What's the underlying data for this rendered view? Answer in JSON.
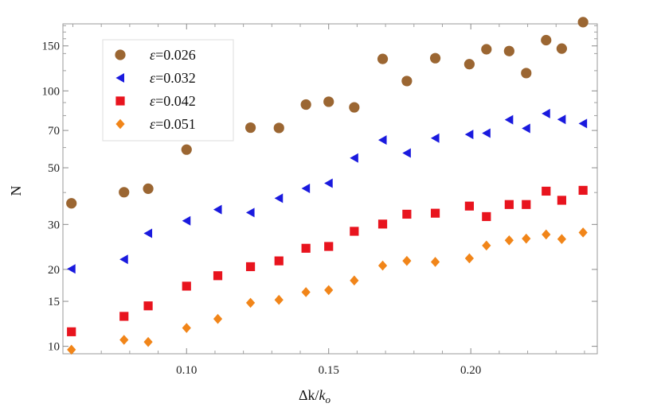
{
  "chart_data": {
    "type": "scatter",
    "title": "",
    "xlabel": "Δk/k_o",
    "ylabel": "N",
    "xlim": [
      0.0565,
      0.2445
    ],
    "ylim": [
      9.35,
      183
    ],
    "y_scale": "log",
    "x_ticks": [
      0.1,
      0.15,
      0.2
    ],
    "x_tick_labels": [
      "0.10",
      "0.15",
      "0.20"
    ],
    "y_ticks": [
      10,
      15,
      20,
      30,
      50,
      70,
      100,
      150
    ],
    "y_tick_labels": [
      "10",
      "15",
      "20",
      "30",
      "50",
      "70",
      "100",
      "150"
    ],
    "grid": false,
    "legend_position": "top-left",
    "x": [
      0.0595,
      0.078,
      0.0865,
      0.1,
      0.111,
      0.1225,
      0.1325,
      0.142,
      0.15,
      0.159,
      0.169,
      0.1775,
      0.1875,
      0.1995,
      0.2055,
      0.2135,
      0.2195,
      0.2265,
      0.232,
      0.2395
    ],
    "series": [
      {
        "name": "ε=0.026",
        "marker": "circle",
        "color": "#9B6632",
        "values": [
          36.3,
          40.1,
          41.4,
          58.9,
          73.7,
          71.8,
          71.6,
          88.4,
          90.7,
          86.2,
          133.4,
          109.3,
          134.3,
          127.2,
          145.5,
          143.2,
          117.4,
          158.0,
          146.4,
          185.8
        ]
      },
      {
        "name": "ε=0.032",
        "marker": "triangle-left",
        "color": "#1A1ADE",
        "values": [
          20.1,
          21.9,
          27.7,
          31.0,
          34.3,
          33.4,
          38.0,
          41.5,
          43.5,
          54.6,
          64.2,
          57.1,
          65.3,
          67.5,
          68.3,
          77.1,
          71.3,
          81.5,
          77.3,
          74.5
        ]
      },
      {
        "name": "ε=0.042",
        "marker": "square",
        "color": "#E8141E",
        "values": [
          11.4,
          13.1,
          14.4,
          17.2,
          18.9,
          20.5,
          21.6,
          24.2,
          24.6,
          28.2,
          30.1,
          32.9,
          33.2,
          35.4,
          32.2,
          35.9,
          35.9,
          40.5,
          37.3,
          40.8
        ]
      },
      {
        "name": "ε=0.051",
        "marker": "diamond",
        "color": "#F18519",
        "values": [
          9.7,
          10.6,
          10.4,
          11.8,
          12.8,
          14.8,
          15.2,
          16.3,
          16.6,
          18.1,
          20.7,
          21.6,
          21.4,
          22.1,
          24.8,
          26.0,
          26.4,
          27.4,
          26.3,
          27.9
        ]
      }
    ]
  }
}
